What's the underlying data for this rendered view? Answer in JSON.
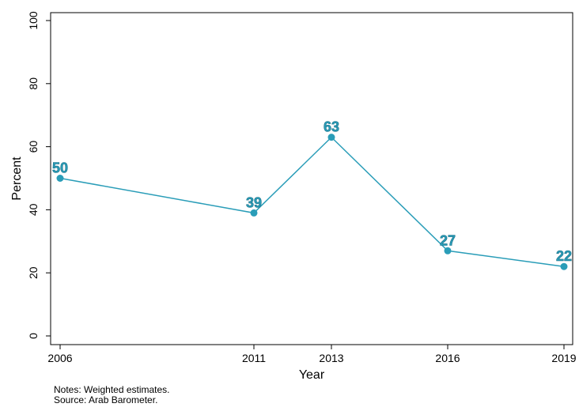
{
  "chart_data": {
    "type": "line",
    "x": [
      "2006",
      "2011",
      "2013",
      "2016",
      "2019"
    ],
    "series": [
      {
        "values": [
          50,
          39,
          63,
          27,
          22
        ],
        "color": "#2a9db8"
      }
    ],
    "data_labels": [
      "50",
      "39",
      "63",
      "27",
      "22"
    ],
    "xlabel": "Year",
    "ylabel": "Percent",
    "ylim": [
      0,
      100
    ],
    "yticks": [
      0,
      20,
      40,
      60,
      80,
      100
    ],
    "grid": false,
    "legend": false
  },
  "notes": {
    "line1": "Notes: Weighted estimates.",
    "line2": "Source: Arab Barometer."
  }
}
